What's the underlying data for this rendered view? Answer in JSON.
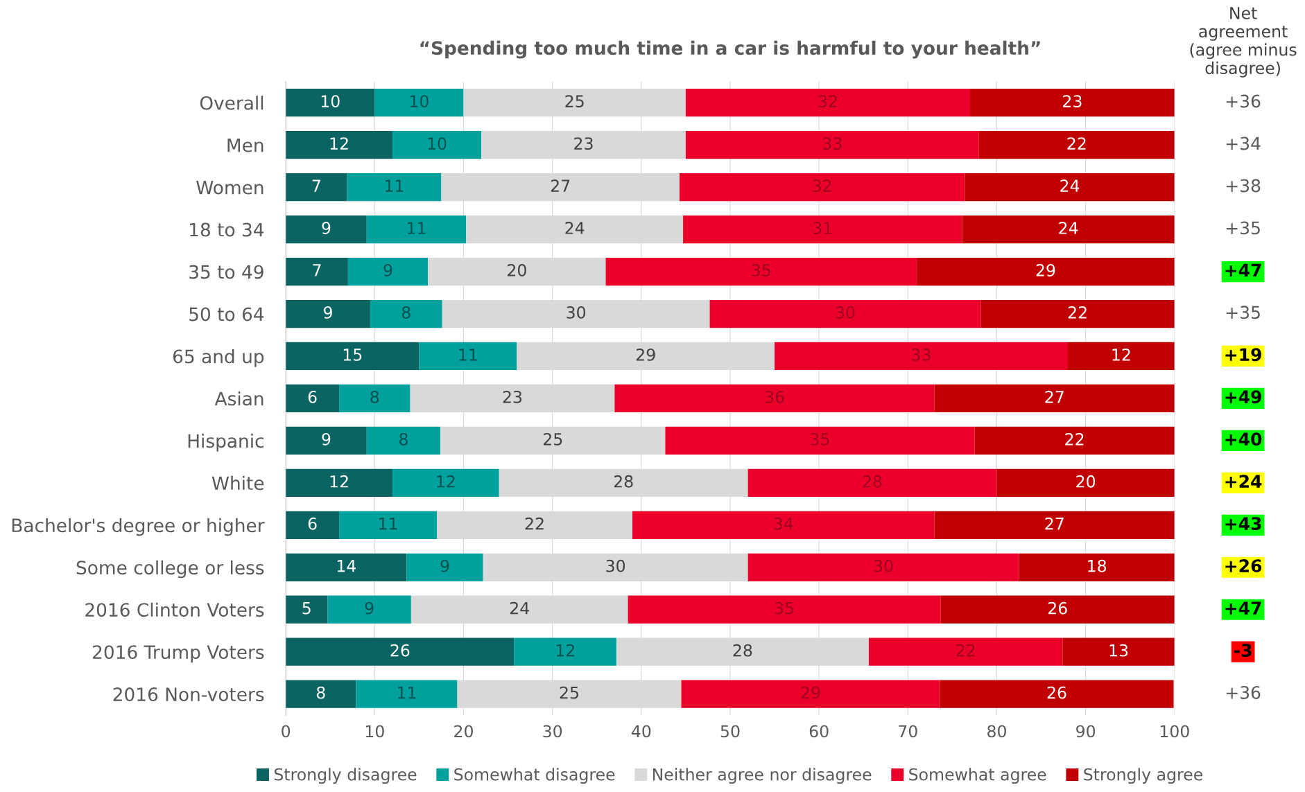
{
  "chart_data": [
    {
      "type": "bar",
      "orientation": "horizontal",
      "stacked": true,
      "title": "“Spending too much time in a car is harmful to your health”",
      "categories": [
        "Overall",
        "Men",
        "Women",
        "18 to 34",
        "35 to 49",
        "50 to 64",
        "65 and up",
        "Asian",
        "Hispanic",
        "White",
        "Bachelor's degree or higher",
        "Some college or less",
        "2016 Clinton Voters",
        "2016 Trump Voters",
        "2016 Non-voters"
      ],
      "series": [
        {
          "name": "Strongly disagree",
          "color": "#0b6462",
          "values": [
            10,
            12,
            6.9,
            9.1,
            7,
            9.5,
            15,
            6,
            9.1,
            12,
            6,
            13.6,
            4.7,
            25.7,
            7.9
          ],
          "value_labels": [
            "10",
            "12",
            "7",
            "9",
            "7",
            "9",
            "15",
            "6",
            "9",
            "12",
            "6",
            "14",
            "5",
            "26",
            "8"
          ]
        },
        {
          "name": "Somewhat disagree",
          "color": "#00a19c",
          "values": [
            10,
            10,
            10.6,
            11.2,
            9,
            8.1,
            11,
            8,
            8.3,
            12,
            11,
            8.6,
            9.4,
            11.5,
            11.4
          ],
          "value_labels": [
            "10",
            "10",
            "11",
            "11",
            "9",
            "8",
            "11",
            "8",
            "8",
            "12",
            "11",
            "9",
            "9",
            "12",
            "11"
          ]
        },
        {
          "name": "Neither agree nor disagree",
          "color": "#d9d9d9",
          "values": [
            25,
            23,
            26.8,
            24.4,
            20,
            30.1,
            29,
            23,
            25.3,
            28,
            22,
            29.8,
            24.4,
            28.4,
            25.2
          ],
          "value_labels": [
            "25",
            "23",
            "27",
            "24",
            "20",
            "30",
            "29",
            "23",
            "25",
            "28",
            "22",
            "30",
            "24",
            "28",
            "25"
          ]
        },
        {
          "name": "Somewhat agree",
          "color": "#ea0029",
          "values": [
            32,
            33,
            32.1,
            31.4,
            35,
            30.5,
            33,
            36,
            34.8,
            28,
            34,
            30.5,
            35.2,
            21.8,
            29.1
          ],
          "value_labels": [
            "32",
            "33",
            "32",
            "31",
            "35",
            "30",
            "33",
            "36",
            "35",
            "28",
            "34",
            "30",
            "35",
            "22",
            "29"
          ]
        },
        {
          "name": "Strongly agree",
          "color": "#c00000",
          "values": [
            23,
            22,
            23.6,
            23.9,
            29,
            21.8,
            12,
            27,
            22.5,
            20,
            27,
            17.5,
            26.3,
            12.6,
            26.3
          ],
          "value_labels": [
            "23",
            "22",
            "24",
            "24",
            "29",
            "22",
            "12",
            "27",
            "22",
            "20",
            "27",
            "18",
            "26",
            "13",
            "26"
          ]
        }
      ],
      "xlim": [
        0,
        100
      ],
      "xticks": [
        0,
        10,
        20,
        30,
        40,
        50,
        60,
        70,
        80,
        90,
        100
      ],
      "grid": "x",
      "legend": "bottom"
    },
    {
      "type": "other",
      "title": "Net agreement (agree minus disagree)",
      "value_labels": [
        "+36",
        "+34",
        "+38",
        "+35",
        "+47",
        "+35",
        "+19",
        "+49",
        "+40",
        "+24",
        "+43",
        "+26",
        "+47",
        "-3",
        "+36"
      ],
      "colors": [
        "#ffffff",
        "#ffffff",
        "#ffffff",
        "#ffffff",
        "#00ff00",
        "#ffffff",
        "#ffff00",
        "#00ff00",
        "#00ff00",
        "#ffff00",
        "#00ff00",
        "#ffff00",
        "#00ff00",
        "#ff0000",
        "#ffffff"
      ]
    }
  ]
}
